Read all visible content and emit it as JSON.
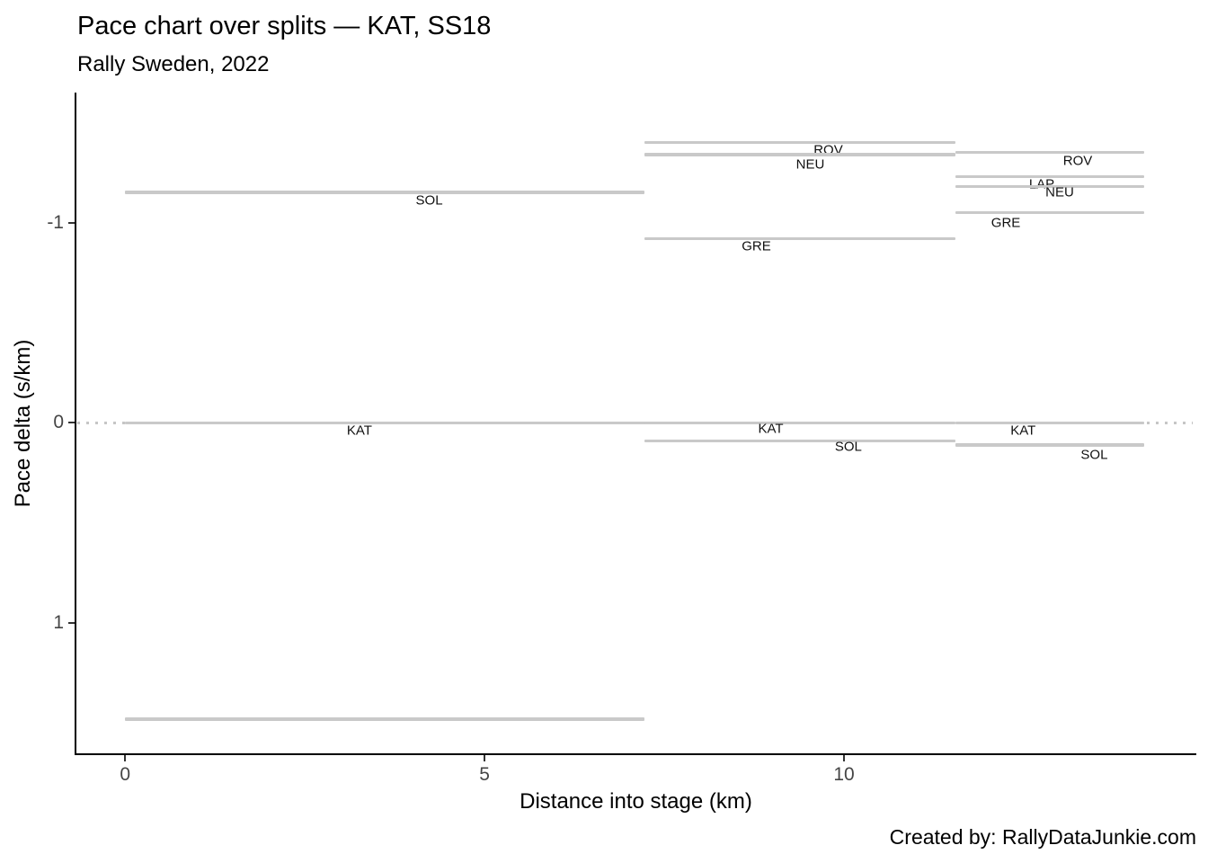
{
  "footer": {
    "caption": "Created by: RallyDataJunkie.com"
  },
  "chart_data": {
    "type": "line",
    "subtype": "horizontal-step-segments",
    "title": "Pace chart over splits — KAT, SS18",
    "subtitle": "Rally Sweden, 2022",
    "xlabel": "Distance into stage (km)",
    "ylabel": "Pace delta (s/km)",
    "x_ticks": [
      0,
      5,
      10
    ],
    "x_tick_labels": [
      "0",
      "5",
      "10"
    ],
    "y_ticks": [
      -1,
      0,
      1
    ],
    "y_tick_labels": [
      "-1",
      "0",
      "1"
    ],
    "y_axis_inverted": true,
    "xlim": [
      -0.69,
      14.9
    ],
    "ylim": [
      -1.64,
      1.65
    ],
    "grid": false,
    "legend": "none",
    "line_color": "#c9c9c9",
    "zero_reference_line": {
      "value": 0,
      "style": "dotted"
    },
    "split_boundaries_km": [
      0,
      7.23,
      11.55,
      14.17
    ],
    "segments": [
      {
        "driver": "SOL",
        "split": 1,
        "x0": 0,
        "x1": 7.23,
        "value": -1.15,
        "label": {
          "x": 4.23,
          "y": -1.11
        }
      },
      {
        "driver": "KAT",
        "split": 1,
        "x0": 0,
        "x1": 7.23,
        "value": 0.0,
        "label": {
          "x": 3.26,
          "y": 0.04
        }
      },
      {
        "driver": "",
        "split": 1,
        "x0": 0,
        "x1": 7.23,
        "value": 1.48,
        "label": null
      },
      {
        "driver": "ROV",
        "split": 2,
        "x0": 7.23,
        "x1": 11.55,
        "value": -1.4,
        "label": {
          "x": 9.78,
          "y": -1.36
        }
      },
      {
        "driver": "NEU",
        "split": 2,
        "x0": 7.23,
        "x1": 11.55,
        "value": -1.34,
        "label": {
          "x": 9.53,
          "y": -1.29
        }
      },
      {
        "driver": "GRE",
        "split": 2,
        "x0": 7.23,
        "x1": 11.55,
        "value": -0.92,
        "label": {
          "x": 8.78,
          "y": -0.88
        }
      },
      {
        "driver": "KAT",
        "split": 2,
        "x0": 7.23,
        "x1": 11.55,
        "value": 0.0,
        "label": {
          "x": 8.98,
          "y": 0.03
        }
      },
      {
        "driver": "SOL",
        "split": 2,
        "x0": 7.23,
        "x1": 11.55,
        "value": 0.09,
        "label": {
          "x": 10.06,
          "y": 0.12
        }
      },
      {
        "driver": "ROV",
        "split": 3,
        "x0": 11.55,
        "x1": 14.17,
        "value": -1.35,
        "label": {
          "x": 13.25,
          "y": -1.31
        }
      },
      {
        "driver": "LAP",
        "split": 3,
        "x0": 11.55,
        "x1": 14.17,
        "value": -1.23,
        "label": {
          "x": 12.75,
          "y": -1.19
        }
      },
      {
        "driver": "NEU",
        "split": 3,
        "x0": 11.55,
        "x1": 14.17,
        "value": -1.18,
        "label": {
          "x": 13.0,
          "y": -1.15
        }
      },
      {
        "driver": "GRE",
        "split": 3,
        "x0": 11.55,
        "x1": 14.17,
        "value": -1.05,
        "label": {
          "x": 12.25,
          "y": -1.0
        }
      },
      {
        "driver": "KAT",
        "split": 3,
        "x0": 11.55,
        "x1": 14.17,
        "value": 0.0,
        "label": {
          "x": 12.49,
          "y": 0.04
        }
      },
      {
        "driver": "SOL",
        "split": 3,
        "x0": 11.55,
        "x1": 14.17,
        "value": 0.11,
        "label": {
          "x": 13.48,
          "y": 0.16
        }
      }
    ]
  }
}
